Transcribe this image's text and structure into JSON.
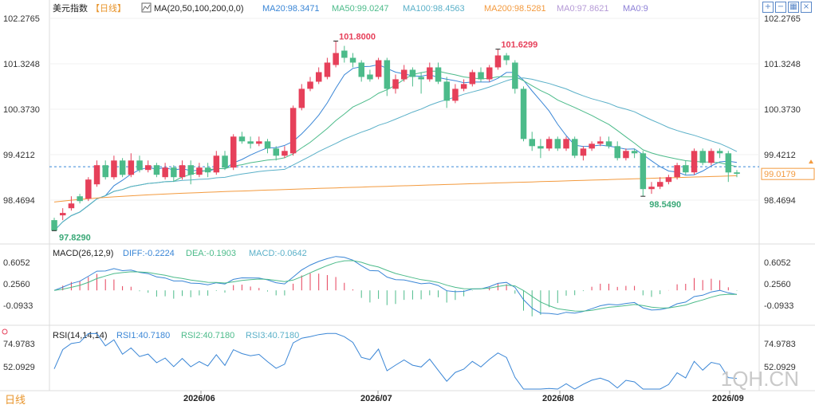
{
  "header": {
    "index_name": "美元指数",
    "period": "【日线】",
    "ma_label": "MA(20,50,100,200,0,0)",
    "ma20": "MA20:98.3471",
    "ma50": "MA50:99.0247",
    "ma100": "MA100:98.4563",
    "ma200": "MA200:98.5281",
    "ma0a": "MA0:97.8621",
    "ma0b": "MA0:9"
  },
  "toolbar": {
    "icons": [
      "square-plus-icon",
      "square-minus-icon",
      "grid-icon",
      "close-icon"
    ]
  },
  "colors": {
    "up": "#e6405a",
    "down": "#4cbb8a",
    "ma20": "#3a86d6",
    "ma50": "#4cbb8a",
    "ma100": "#5ab0c8",
    "ma200": "#f39a3e",
    "last": "#f39a3e"
  },
  "price_axis": {
    "ticks": [
      "102.2765",
      "101.3248",
      "100.3730",
      "99.4212",
      "98.4694"
    ],
    "last_price": "99.0179"
  },
  "annotations": {
    "high1": "101.8000",
    "high2": "101.6299",
    "low1": "97.8290",
    "low2": "98.5490"
  },
  "macd": {
    "label": "MACD(26,12,9)",
    "diff": "DIFF:-0.2224",
    "dea": "DEA:-0.1903",
    "macd": "MACD:-0.0642",
    "ticks": [
      "0.6052",
      "0.2560",
      "-0.0933"
    ]
  },
  "rsi": {
    "label": "RSI(14,14,14)",
    "rsi1": "RSI1:40.7180",
    "rsi2": "RSI2:40.7180",
    "rsi3": "RSI3:40.7180",
    "ticks": [
      "74.9783",
      "52.0929"
    ]
  },
  "x_axis": {
    "labels": [
      "2026/06",
      "2026/07",
      "2026/08",
      "2026/09"
    ]
  },
  "period_tag": "日线",
  "watermark": "1QH.CN",
  "chart_data": {
    "type": "candlestick",
    "price_range": [
      97.75,
      102.28
    ],
    "candles": [
      [
        98.05,
        97.83,
        98.1,
        97.83
      ],
      [
        98.15,
        98.2,
        98.3,
        98.05
      ],
      [
        98.3,
        98.4,
        98.55,
        98.25
      ],
      [
        98.55,
        98.45,
        98.6,
        98.4
      ],
      [
        98.5,
        98.9,
        98.95,
        98.45
      ],
      [
        98.8,
        99.2,
        99.3,
        98.75
      ],
      [
        99.2,
        98.95,
        99.3,
        98.9
      ],
      [
        98.95,
        99.3,
        99.4,
        98.9
      ],
      [
        99.3,
        99.0,
        99.35,
        98.95
      ],
      [
        99.0,
        99.3,
        99.45,
        98.95
      ],
      [
        99.3,
        99.1,
        99.4,
        99.05
      ],
      [
        99.1,
        99.2,
        99.3,
        99.05
      ],
      [
        99.2,
        99.0,
        99.25,
        98.95
      ],
      [
        98.95,
        99.15,
        99.25,
        98.9
      ],
      [
        99.15,
        98.95,
        99.2,
        98.85
      ],
      [
        98.95,
        99.2,
        99.3,
        98.9
      ],
      [
        99.2,
        99.0,
        99.3,
        98.8
      ],
      [
        99.0,
        99.15,
        99.25,
        98.95
      ],
      [
        99.15,
        99.05,
        99.25,
        98.95
      ],
      [
        99.05,
        99.4,
        99.5,
        99.0
      ],
      [
        99.4,
        99.15,
        99.5,
        99.1
      ],
      [
        99.15,
        99.8,
        99.85,
        99.1
      ],
      [
        99.8,
        99.7,
        99.9,
        99.65
      ],
      [
        99.7,
        99.65,
        99.8,
        99.55
      ],
      [
        99.65,
        99.7,
        99.8,
        99.6
      ],
      [
        99.7,
        99.55,
        99.75,
        99.45
      ],
      [
        99.55,
        99.4,
        99.6,
        99.3
      ],
      [
        99.4,
        99.5,
        99.6,
        99.35
      ],
      [
        99.45,
        100.4,
        100.45,
        99.4
      ],
      [
        100.4,
        100.8,
        100.9,
        100.35
      ],
      [
        100.8,
        100.95,
        101.05,
        100.75
      ],
      [
        100.95,
        101.15,
        101.25,
        100.9
      ],
      [
        101.05,
        101.35,
        101.45,
        101.0
      ],
      [
        101.3,
        101.55,
        101.8,
        101.25
      ],
      [
        101.6,
        101.45,
        101.7,
        101.35
      ],
      [
        101.45,
        101.35,
        101.55,
        101.25
      ],
      [
        101.35,
        101.05,
        101.4,
        100.95
      ],
      [
        101.1,
        101.0,
        101.2,
        100.95
      ],
      [
        101.05,
        101.4,
        101.45,
        101.0
      ],
      [
        101.4,
        100.8,
        101.45,
        100.65
      ],
      [
        100.8,
        101.0,
        101.1,
        100.7
      ],
      [
        101.0,
        101.2,
        101.3,
        100.95
      ],
      [
        101.2,
        101.05,
        101.25,
        100.85
      ],
      [
        101.05,
        101.0,
        101.15,
        100.7
      ],
      [
        101.0,
        101.25,
        101.35,
        100.95
      ],
      [
        101.25,
        100.95,
        101.35,
        100.9
      ],
      [
        100.95,
        100.55,
        101.05,
        100.4
      ],
      [
        100.55,
        100.8,
        100.9,
        100.5
      ],
      [
        100.8,
        100.9,
        101.0,
        100.75
      ],
      [
        100.9,
        101.15,
        101.2,
        100.85
      ],
      [
        101.15,
        101.0,
        101.25,
        100.95
      ],
      [
        101.0,
        101.25,
        101.3,
        100.95
      ],
      [
        101.25,
        101.5,
        101.63,
        101.2
      ],
      [
        101.5,
        101.4,
        101.55,
        101.3
      ],
      [
        101.35,
        100.8,
        101.4,
        100.7
      ],
      [
        100.8,
        99.75,
        100.85,
        99.7
      ],
      [
        99.75,
        99.6,
        99.9,
        99.5
      ],
      [
        99.6,
        99.55,
        99.75,
        99.35
      ],
      [
        99.55,
        99.75,
        99.8,
        99.5
      ],
      [
        99.75,
        99.55,
        99.8,
        99.5
      ],
      [
        99.55,
        99.75,
        99.8,
        99.5
      ],
      [
        99.75,
        99.4,
        99.8,
        99.35
      ],
      [
        99.4,
        99.55,
        99.6,
        99.3
      ],
      [
        99.55,
        99.65,
        99.7,
        99.5
      ],
      [
        99.65,
        99.7,
        99.8,
        99.6
      ],
      [
        99.7,
        99.6,
        99.8,
        99.55
      ],
      [
        99.6,
        99.35,
        99.7,
        99.3
      ],
      [
        99.35,
        99.5,
        99.55,
        99.3
      ],
      [
        99.5,
        99.45,
        99.55,
        99.35
      ],
      [
        99.45,
        98.7,
        99.5,
        98.55
      ],
      [
        98.7,
        98.75,
        98.85,
        98.6
      ],
      [
        98.75,
        98.85,
        98.95,
        98.7
      ],
      [
        98.85,
        98.95,
        99.0,
        98.8
      ],
      [
        98.95,
        99.2,
        99.25,
        98.9
      ],
      [
        99.2,
        99.05,
        99.3,
        99.0
      ],
      [
        99.05,
        99.5,
        99.55,
        99.0
      ],
      [
        99.5,
        99.25,
        99.55,
        99.2
      ],
      [
        99.25,
        99.5,
        99.55,
        99.2
      ],
      [
        99.5,
        99.45,
        99.55,
        99.35
      ],
      [
        99.45,
        99.05,
        99.5,
        98.85
      ],
      [
        99.05,
        99.02,
        99.1,
        98.95
      ]
    ],
    "macd_ticks": [
      0.6052,
      0.256,
      -0.0933
    ],
    "rsi_ticks": [
      74.9783,
      52.0929
    ],
    "last": {
      "diff": -0.2224,
      "dea": -0.1903,
      "macd": -0.0642,
      "rsi": 40.718
    }
  }
}
